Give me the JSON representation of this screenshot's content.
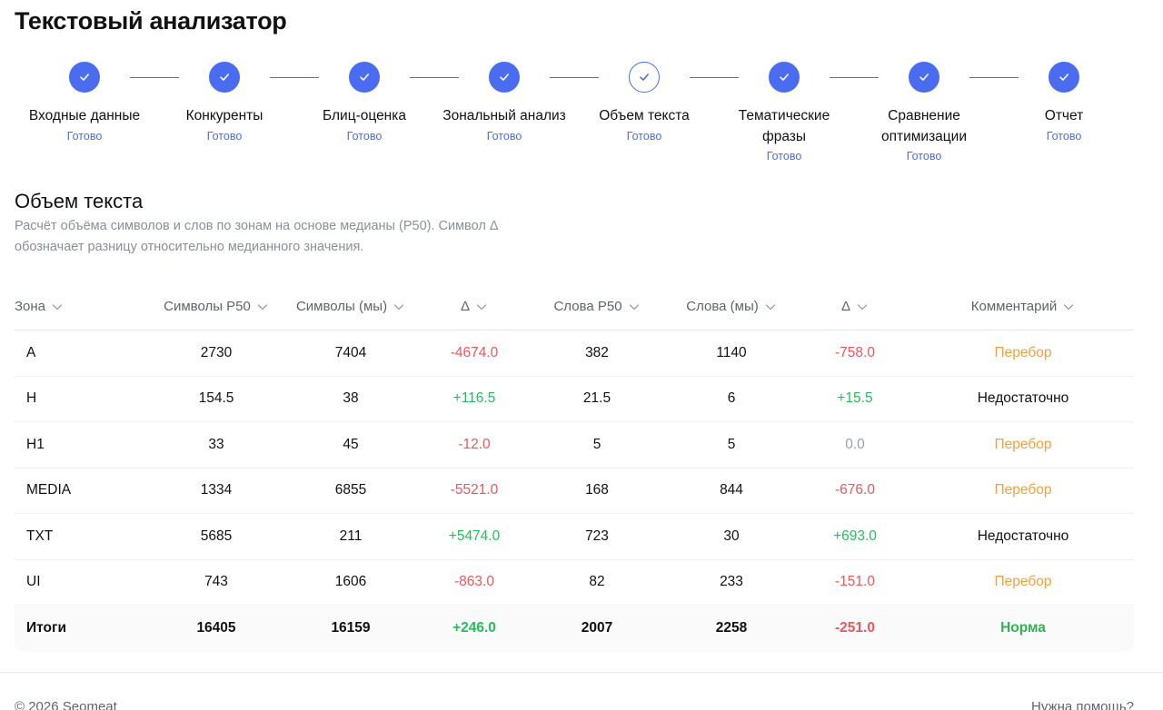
{
  "app": {
    "title": "Текстовый анализатор"
  },
  "steps": [
    {
      "label": "Входные данные",
      "status": "Готово",
      "active": false
    },
    {
      "label": "Конкуренты",
      "status": "Готово",
      "active": false
    },
    {
      "label": "Блиц-оценка",
      "status": "Готово",
      "active": false
    },
    {
      "label": "Зональный анализ",
      "status": "Готово",
      "active": false
    },
    {
      "label": "Объем текста",
      "status": "Готово",
      "active": true
    },
    {
      "label": "Тематические фразы",
      "status": "Готово",
      "active": false
    },
    {
      "label": "Сравнение оптимизации",
      "status": "Готово",
      "active": false
    },
    {
      "label": "Отчет",
      "status": "Готово",
      "active": false
    }
  ],
  "section": {
    "title": "Объем текста",
    "description": "Расчёт объёма символов и слов по зонам на основе медианы (P50). Символ Δ обозначает разницу относительно медианного значения."
  },
  "table": {
    "headers": [
      "Зона",
      "Символы P50",
      "Символы (мы)",
      "Δ",
      "Слова P50",
      "Слова (мы)",
      "Δ",
      "Комментарий"
    ],
    "rows": [
      {
        "zone": "A",
        "chars_p50": "2730",
        "chars_us": "7404",
        "chars_delta": "-4674.0",
        "chars_delta_kind": "neg",
        "words_p50": "382",
        "words_us": "1140",
        "words_delta": "-758.0",
        "words_delta_kind": "neg",
        "comment": "Перебор",
        "comment_kind": "over"
      },
      {
        "zone": "H",
        "chars_p50": "154.5",
        "chars_us": "38",
        "chars_delta": "+116.5",
        "chars_delta_kind": "pos",
        "words_p50": "21.5",
        "words_us": "6",
        "words_delta": "+15.5",
        "words_delta_kind": "pos",
        "comment": "Недостаточно",
        "comment_kind": "plain"
      },
      {
        "zone": "H1",
        "chars_p50": "33",
        "chars_us": "45",
        "chars_delta": "-12.0",
        "chars_delta_kind": "neg",
        "words_p50": "5",
        "words_us": "5",
        "words_delta": "0.0",
        "words_delta_kind": "zero",
        "comment": "Перебор",
        "comment_kind": "over"
      },
      {
        "zone": "MEDIA",
        "chars_p50": "1334",
        "chars_us": "6855",
        "chars_delta": "-5521.0",
        "chars_delta_kind": "neg",
        "words_p50": "168",
        "words_us": "844",
        "words_delta": "-676.0",
        "words_delta_kind": "neg",
        "comment": "Перебор",
        "comment_kind": "over"
      },
      {
        "zone": "TXT",
        "chars_p50": "5685",
        "chars_us": "211",
        "chars_delta": "+5474.0",
        "chars_delta_kind": "pos",
        "words_p50": "723",
        "words_us": "30",
        "words_delta": "+693.0",
        "words_delta_kind": "pos",
        "comment": "Недостаточно",
        "comment_kind": "plain"
      },
      {
        "zone": "UI",
        "chars_p50": "743",
        "chars_us": "1606",
        "chars_delta": "-863.0",
        "chars_delta_kind": "neg",
        "words_p50": "82",
        "words_us": "233",
        "words_delta": "-151.0",
        "words_delta_kind": "neg",
        "comment": "Перебор",
        "comment_kind": "over"
      }
    ],
    "total": {
      "zone": "Итоги",
      "chars_p50": "16405",
      "chars_us": "16159",
      "chars_delta": "+246.0",
      "chars_delta_kind": "pos",
      "words_p50": "2007",
      "words_us": "2258",
      "words_delta": "-251.0",
      "words_delta_kind": "neg",
      "comment": "Норма",
      "comment_kind": "ok"
    }
  },
  "footer": {
    "copyright": "© 2026 Seomeat",
    "help": "Нужна помощь?"
  },
  "colors": {
    "accent": "#4a6cf0",
    "negative": "#f0555a",
    "positive": "#23c05a",
    "warning": "#f5a03a",
    "ok": "#2fb34f"
  }
}
